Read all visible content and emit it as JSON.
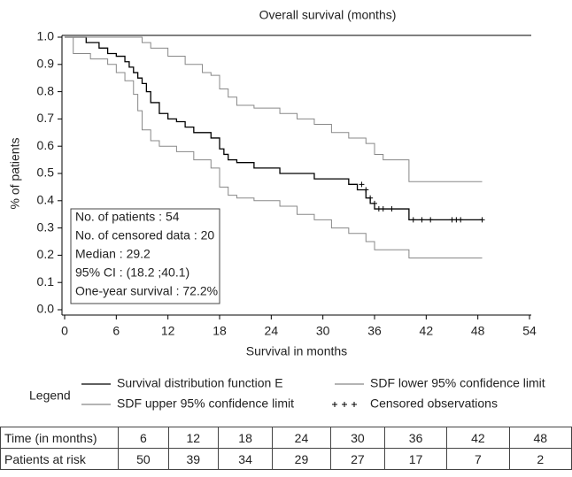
{
  "chart_data": {
    "type": "line",
    "title": "Overall survival (months)",
    "xlabel": "Survival in months",
    "ylabel": "% of patients",
    "xlim": [
      0,
      54
    ],
    "xticks": [
      0,
      6,
      12,
      18,
      24,
      30,
      36,
      42,
      48,
      54
    ],
    "ylim": [
      0,
      1
    ],
    "yticks": [
      {
        "value": 0,
        "label": "0.0"
      },
      0.1,
      0.2,
      0.3,
      0.4,
      0.5,
      0.6,
      0.7,
      0.8,
      0.9,
      {
        "value": 1,
        "label": "1.0"
      }
    ],
    "legend_title": "Legend",
    "series": [
      {
        "name": "Survival distribution function E",
        "color": "#000000",
        "x": [
          0,
          2.5,
          4,
          5,
          6,
          7,
          7.5,
          8,
          8.5,
          9,
          9.5,
          10,
          11,
          12,
          13,
          14,
          15,
          17,
          18,
          18.5,
          19,
          20,
          22,
          25,
          29,
          33,
          34,
          35,
          35.5,
          36,
          40,
          48.5
        ],
        "values": [
          1.0,
          0.98,
          0.96,
          0.94,
          0.93,
          0.91,
          0.89,
          0.87,
          0.85,
          0.83,
          0.8,
          0.76,
          0.72,
          0.7,
          0.69,
          0.67,
          0.65,
          0.63,
          0.59,
          0.57,
          0.55,
          0.54,
          0.52,
          0.5,
          0.48,
          0.46,
          0.44,
          0.41,
          0.39,
          0.37,
          0.33,
          0.33
        ]
      },
      {
        "name": "SDF lower 95% confidence limit",
        "color": "#888888",
        "x": [
          0,
          1,
          3,
          5,
          6,
          7,
          8,
          8.5,
          9,
          10,
          11,
          13,
          15,
          17,
          18,
          19,
          20,
          22,
          25,
          27,
          29,
          31,
          33,
          35,
          36,
          40,
          48.5
        ],
        "values": [
          1.0,
          0.94,
          0.92,
          0.9,
          0.87,
          0.84,
          0.79,
          0.73,
          0.66,
          0.62,
          0.6,
          0.58,
          0.55,
          0.52,
          0.45,
          0.42,
          0.41,
          0.4,
          0.38,
          0.35,
          0.33,
          0.3,
          0.28,
          0.25,
          0.22,
          0.19,
          0.19
        ]
      },
      {
        "name": "SDF upper 95% confidence limit",
        "color": "#888888",
        "x": [
          0,
          9,
          10,
          12,
          14,
          16,
          17,
          18,
          19,
          20,
          22,
          25,
          27,
          29,
          31,
          33,
          35,
          36,
          37,
          40,
          48.5
        ],
        "values": [
          1.0,
          0.98,
          0.96,
          0.93,
          0.9,
          0.87,
          0.86,
          0.81,
          0.78,
          0.75,
          0.74,
          0.72,
          0.7,
          0.68,
          0.65,
          0.63,
          0.61,
          0.57,
          0.55,
          0.47,
          0.47
        ]
      },
      {
        "name": "Censored observations",
        "color": "#000000",
        "marker": "+",
        "x": [
          34.5,
          35,
          35.5,
          36,
          36.5,
          37,
          38,
          40.5,
          41.5,
          42.5,
          45,
          45.5,
          46,
          48.5
        ],
        "values": [
          0.46,
          0.44,
          0.41,
          0.39,
          0.37,
          0.37,
          0.37,
          0.33,
          0.33,
          0.33,
          0.33,
          0.33,
          0.33,
          0.33
        ]
      }
    ],
    "info_box": [
      "No. of patients : 54",
      "No. of censored data : 20",
      "Median : 29.2",
      "95% CI : (18.2 ;40.1)",
      "One-year survival : 72.2%"
    ]
  },
  "table": {
    "header": [
      "Time (in months)",
      6,
      12,
      18,
      24,
      30,
      36,
      42,
      48
    ],
    "rows": [
      [
        "Patients at risk",
        50,
        39,
        34,
        29,
        27,
        17,
        7,
        2
      ]
    ]
  }
}
